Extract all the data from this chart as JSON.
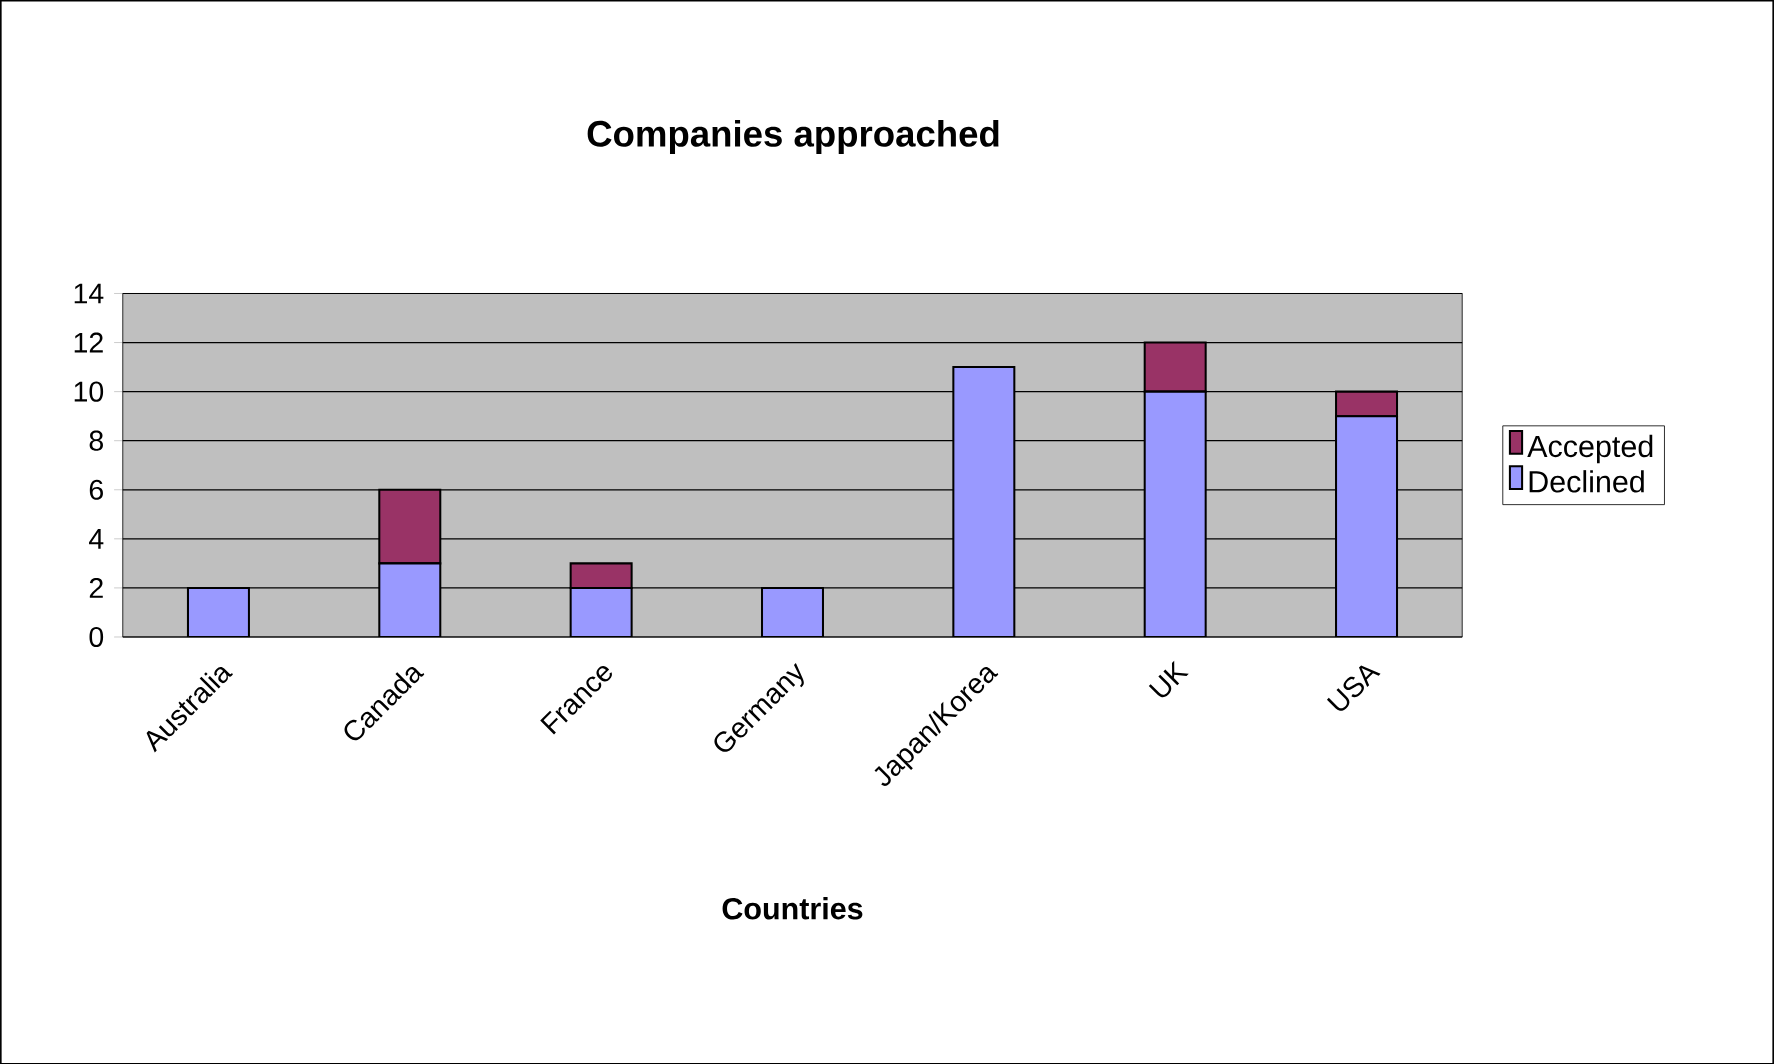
{
  "chart_data": {
    "type": "bar",
    "title": "Companies approached",
    "xlabel": "Countries",
    "categories": [
      "Australia",
      "Canada",
      "France",
      "Germany",
      "Japan/Korea",
      "UK",
      "USA"
    ],
    "series": [
      {
        "name": "Declined",
        "color": "#9999ff",
        "values": [
          2,
          3,
          2,
          2,
          11,
          10,
          9
        ]
      },
      {
        "name": "Accepted",
        "color": "#993366",
        "values": [
          0,
          3,
          1,
          0,
          0,
          2,
          1
        ]
      }
    ],
    "stacked": true,
    "ylim": [
      0,
      14
    ],
    "yticks": [
      0,
      2,
      4,
      6,
      8,
      10,
      12,
      14
    ],
    "grid": "y",
    "legend": "right"
  }
}
